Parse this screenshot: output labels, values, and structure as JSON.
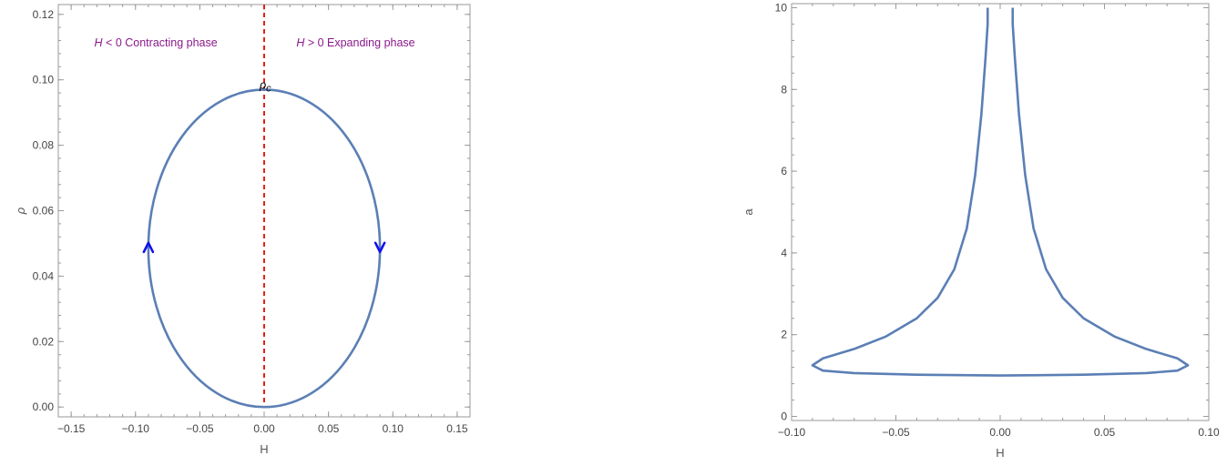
{
  "chart_data": [
    {
      "type": "line",
      "xlabel": "H",
      "ylabel": "ρ",
      "xlim": [
        -0.16,
        0.16
      ],
      "ylim": [
        -0.003,
        0.123
      ],
      "xticks": [
        "−0.15",
        "−0.10",
        "−0.05",
        "0.00",
        "0.05",
        "0.10",
        "0.15"
      ],
      "xtick_values": [
        -0.15,
        -0.1,
        -0.05,
        0.0,
        0.05,
        0.1,
        0.15
      ],
      "yticks": [
        "0.00",
        "0.02",
        "0.04",
        "0.06",
        "0.08",
        "0.10",
        "0.12"
      ],
      "ytick_values": [
        0.0,
        0.02,
        0.04,
        0.06,
        0.08,
        0.1,
        0.12
      ],
      "series": [
        {
          "shape": "ellipse",
          "center_x": 0.0,
          "center_y": 0.0485,
          "half_width_x": 0.09,
          "half_height_y": 0.0485,
          "color": "#5b7fb5"
        }
      ],
      "vline": {
        "x": 0.0,
        "style": "dashed",
        "color": "#e32119"
      },
      "arrows": [
        {
          "x": -0.09,
          "y": 0.0485,
          "direction": "up",
          "color": "#1111ee"
        },
        {
          "x": 0.09,
          "y": 0.0485,
          "direction": "down",
          "color": "#1111ee"
        }
      ],
      "annotations": {
        "left_var": "H",
        "left_rest": " < 0 Contracting phase",
        "right_var": "H",
        "right_rest": " > 0 Expanding phase",
        "annotation_color": "#8b1a8b",
        "rho_c_base": "ρ",
        "rho_c_sub": "c"
      }
    },
    {
      "type": "line",
      "xlabel": "H",
      "ylabel": "a",
      "xlim": [
        -0.1,
        0.1
      ],
      "ylim": [
        -0.1,
        10.1
      ],
      "xticks": [
        "−0.10",
        "−0.05",
        "0.00",
        "0.05",
        "0.10"
      ],
      "xtick_values": [
        -0.1,
        -0.05,
        0.0,
        0.05,
        0.1
      ],
      "yticks": [
        "0",
        "2",
        "4",
        "6",
        "8",
        "10"
      ],
      "ytick_values": [
        0,
        2,
        4,
        6,
        8,
        10
      ],
      "series": [
        {
          "color": "#5b7fb5",
          "points": [
            [
              0.0,
              1.0
            ],
            [
              0.04,
              1.02
            ],
            [
              0.07,
              1.06
            ],
            [
              0.085,
              1.12
            ],
            [
              0.09,
              1.25
            ],
            [
              0.085,
              1.42
            ],
            [
              0.07,
              1.65
            ],
            [
              0.055,
              1.95
            ],
            [
              0.04,
              2.4
            ],
            [
              0.03,
              2.9
            ],
            [
              0.022,
              3.6
            ],
            [
              0.016,
              4.6
            ],
            [
              0.012,
              5.9
            ],
            [
              0.009,
              7.4
            ],
            [
              0.007,
              8.8
            ],
            [
              0.006,
              9.6
            ],
            [
              0.006,
              10.0
            ]
          ],
          "mirror": true
        }
      ]
    }
  ]
}
